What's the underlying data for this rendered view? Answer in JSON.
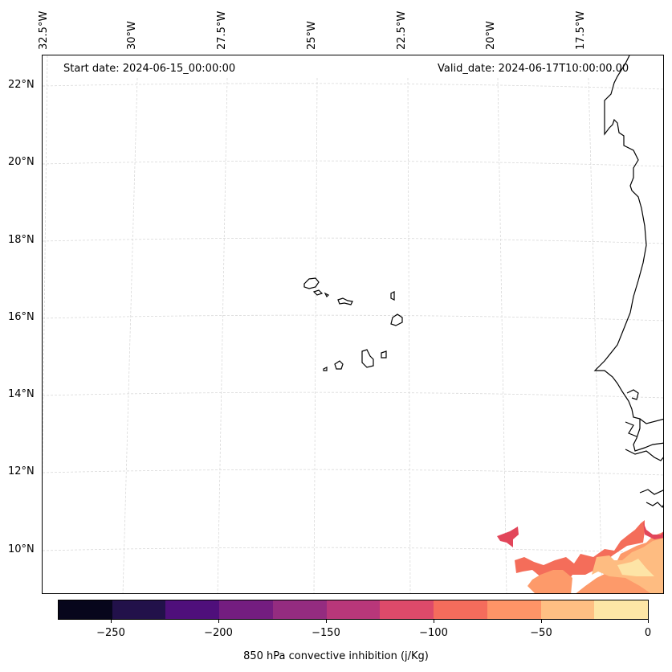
{
  "map": {
    "start_date": "Start date: 2024-06-15_00:00:00",
    "valid_date": "Valid_date: 2024-06-17T10:00:00.00",
    "lon_labels": [
      "32.5°W",
      "30°W",
      "27.5°W",
      "25°W",
      "22.5°W",
      "20°W",
      "17.5°W"
    ],
    "lat_labels": [
      "22°N",
      "20°N",
      "18°N",
      "16°N",
      "14°N",
      "12°N",
      "10°N"
    ],
    "gridlines": "dashed light gray",
    "field_colors": {
      "mid": "#e2465a",
      "mid_light": "#f46d5a",
      "light": "#fd9a6a",
      "lighter": "#febc81",
      "lightest": "#fde4a6"
    }
  },
  "colorbar": {
    "colors": [
      "#07061c",
      "#22114a",
      "#4f0f7b",
      "#741d80",
      "#942c80",
      "#b8377a",
      "#dd4a6a",
      "#f56c5c",
      "#fe9467",
      "#febf83",
      "#fde6a6"
    ],
    "tick_labels": [
      "−250",
      "−200",
      "−150",
      "−100",
      "−50",
      "0"
    ],
    "label": "850 hPa convective inhibition (j/Kg)"
  }
}
